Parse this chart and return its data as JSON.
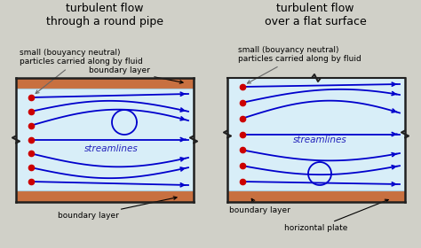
{
  "bg_color": "#d0d0c8",
  "fluid_color": "#d8eef8",
  "pipe_color": "#c87040",
  "wall_color": "#202020",
  "stream_color": "#0000cc",
  "particle_color": "#cc0000",
  "text_color": "#000000",
  "title_left": "turbulent flow\nthrough a round pipe",
  "title_right": "turbulent flow\nover a flat surface",
  "label_small_left": "small (bouyancy neutral)\nparticles carried along by fluid",
  "label_small_right": "small (bouyancy neutral)\nparticles carried along by fluid",
  "label_boundary_top_left": "boundary layer",
  "label_boundary_bot_left": "boundary layer",
  "label_boundary_bot_right": "boundary layer",
  "label_streamlines": "streamlines",
  "label_horizontal_plate": "horizontal plate",
  "ann_fs": 6.5,
  "title_fs": 9.0
}
